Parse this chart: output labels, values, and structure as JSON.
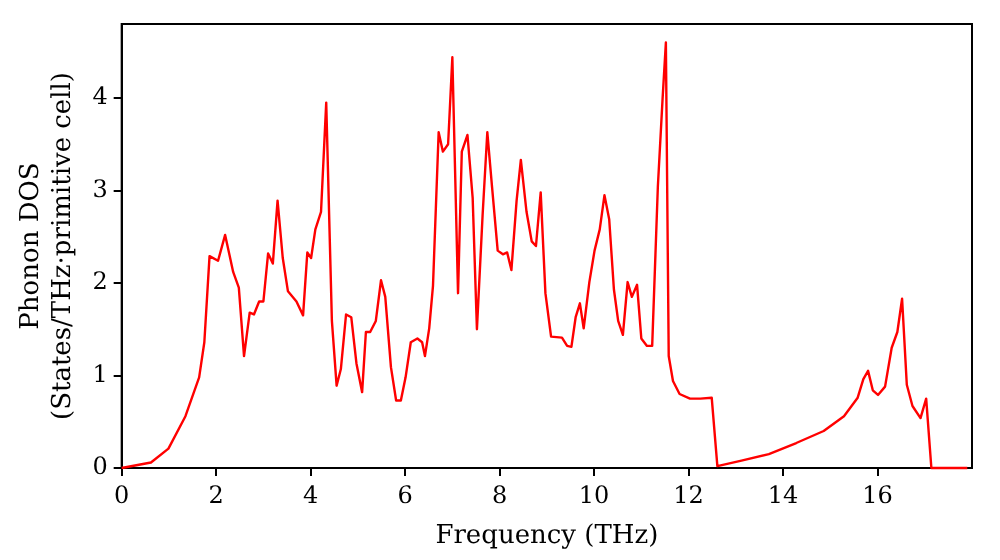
{
  "chart_data": {
    "type": "line",
    "xlabel": "Frequency (THz)",
    "ylabel": "Phonon DOS\n(States/THz·primitive cell)",
    "xlim": [
      0,
      18
    ],
    "ylim": [
      0,
      4.8
    ],
    "xticks": [
      0,
      2,
      4,
      6,
      8,
      10,
      12,
      14,
      16
    ],
    "yticks": [
      0,
      1,
      2,
      3,
      4
    ],
    "grid": false,
    "legend": false,
    "marker": "none",
    "line_style": "solid",
    "series": [
      {
        "color": "#ff0000",
        "x": [
          0,
          0.62,
          0.99,
          1.35,
          1.64,
          1.75,
          1.86,
          2.04,
          2.19,
          2.36,
          2.48,
          2.59,
          2.71,
          2.8,
          2.91,
          3.0,
          3.1,
          3.2,
          3.3,
          3.41,
          3.52,
          3.7,
          3.84,
          3.93,
          4.01,
          4.1,
          4.22,
          4.33,
          4.45,
          4.55,
          4.64,
          4.75,
          4.86,
          4.97,
          5.09,
          5.17,
          5.26,
          5.38,
          5.49,
          5.58,
          5.7,
          5.81,
          5.91,
          6.01,
          6.12,
          6.26,
          6.36,
          6.42,
          6.51,
          6.59,
          6.71,
          6.8,
          6.91,
          7.0,
          7.12,
          7.2,
          7.32,
          7.43,
          7.52,
          7.64,
          7.74,
          7.84,
          7.96,
          8.07,
          8.16,
          8.25,
          8.36,
          8.45,
          8.57,
          8.68,
          8.77,
          8.87,
          8.97,
          9.09,
          9.32,
          9.43,
          9.52,
          9.61,
          9.7,
          9.78,
          9.9,
          10.01,
          10.12,
          10.22,
          10.32,
          10.42,
          10.51,
          10.61,
          10.71,
          10.8,
          10.91,
          11.0,
          11.12,
          11.23,
          11.35,
          11.45,
          11.52,
          11.58,
          11.67,
          11.81,
          12.03,
          12.25,
          12.49,
          12.61,
          13.12,
          13.7,
          14.28,
          14.86,
          15.29,
          15.58,
          15.7,
          15.8,
          15.9,
          16.01,
          16.16,
          16.3,
          16.42,
          16.52,
          16.62,
          16.74,
          16.91,
          17.03,
          17.14,
          17.9
        ],
        "values": [
          0,
          0.06,
          0.21,
          0.56,
          0.98,
          1.36,
          2.29,
          2.24,
          2.52,
          2.12,
          1.95,
          1.21,
          1.68,
          1.66,
          1.8,
          1.8,
          2.32,
          2.21,
          2.89,
          2.27,
          1.91,
          1.8,
          1.65,
          2.33,
          2.27,
          2.58,
          2.77,
          3.95,
          1.59,
          0.89,
          1.07,
          1.66,
          1.63,
          1.13,
          0.82,
          1.47,
          1.47,
          1.59,
          2.03,
          1.85,
          1.09,
          0.73,
          0.73,
          0.98,
          1.36,
          1.4,
          1.36,
          1.21,
          1.51,
          1.97,
          3.63,
          3.42,
          3.5,
          4.44,
          1.89,
          3.42,
          3.6,
          2.92,
          1.5,
          2.73,
          3.63,
          3.04,
          2.35,
          2.31,
          2.33,
          2.14,
          2.89,
          3.33,
          2.77,
          2.45,
          2.4,
          2.98,
          1.89,
          1.42,
          1.41,
          1.32,
          1.31,
          1.63,
          1.78,
          1.51,
          2.01,
          2.35,
          2.58,
          2.95,
          2.69,
          1.93,
          1.59,
          1.44,
          2.01,
          1.85,
          1.98,
          1.4,
          1.32,
          1.32,
          3.04,
          3.99,
          4.6,
          1.21,
          0.94,
          0.8,
          0.75,
          0.75,
          0.76,
          0.02,
          0.08,
          0.15,
          0.27,
          0.4,
          0.56,
          0.76,
          0.96,
          1.05,
          0.84,
          0.79,
          0.88,
          1.3,
          1.47,
          1.83,
          0.9,
          0.67,
          0.54,
          0.75,
          0,
          0
        ]
      }
    ]
  }
}
